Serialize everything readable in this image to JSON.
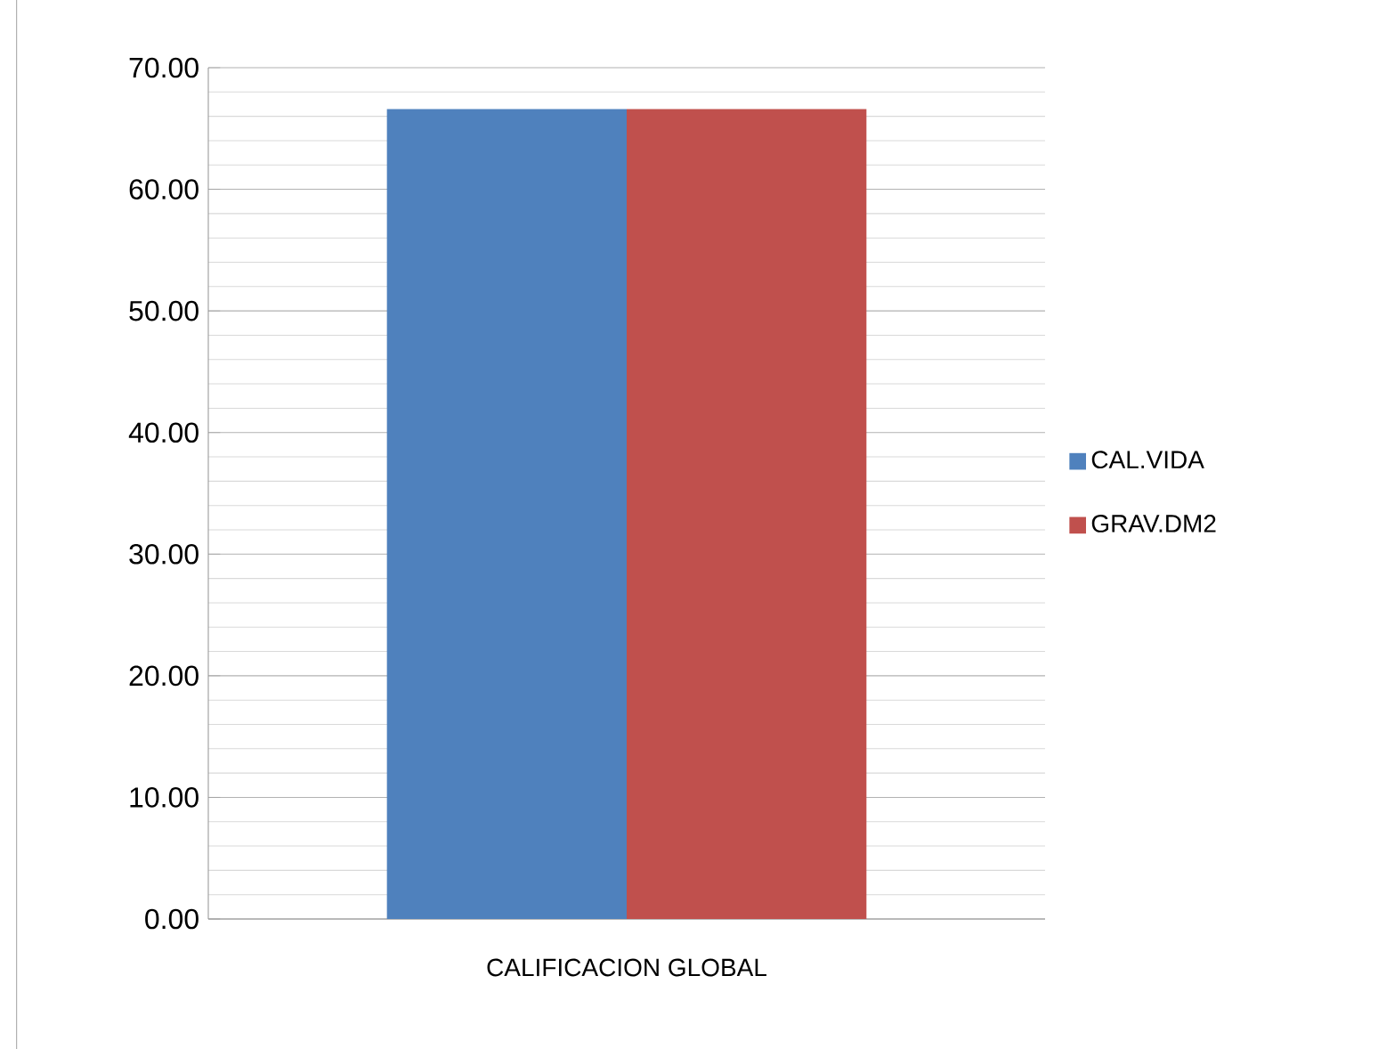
{
  "chart_data": {
    "type": "bar",
    "categories": [
      "CALIFICACION GLOBAL"
    ],
    "series": [
      {
        "name": "CAL.VIDA",
        "color": "#4f81bd",
        "values": [
          66.6
        ]
      },
      {
        "name": "GRAV.DM2",
        "color": "#c0504d",
        "values": [
          66.6
        ]
      }
    ],
    "ylim": [
      0,
      70
    ],
    "yticks": [
      {
        "value": 0,
        "label": "0.00"
      },
      {
        "value": 10,
        "label": "10.00"
      },
      {
        "value": 20,
        "label": "20.00"
      },
      {
        "value": 30,
        "label": "30.00"
      },
      {
        "value": 40,
        "label": "40.00"
      },
      {
        "value": 50,
        "label": "50.00"
      },
      {
        "value": 60,
        "label": "60.00"
      },
      {
        "value": 70,
        "label": "70.00"
      }
    ],
    "grid": "y",
    "legend": "right"
  }
}
